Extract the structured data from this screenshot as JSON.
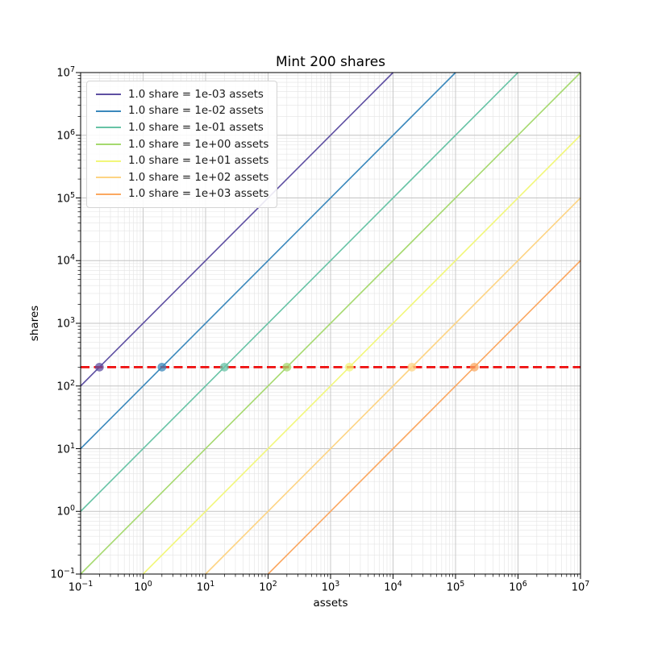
{
  "title": "Mint 200 shares",
  "axes": {
    "xlabel": "assets",
    "ylabel": "shares"
  },
  "chart_data": {
    "type": "line",
    "title": "Mint 200 shares",
    "xlabel": "assets",
    "ylabel": "shares",
    "xscale": "log",
    "yscale": "log",
    "xlim": [
      0.1,
      10000000
    ],
    "ylim": [
      0.1,
      10000000
    ],
    "x_tick_exponents": [
      -1,
      0,
      1,
      2,
      3,
      4,
      5,
      6,
      7
    ],
    "y_tick_exponents": [
      -1,
      0,
      1,
      2,
      3,
      4,
      5,
      6,
      7
    ],
    "grid": {
      "major": true,
      "minor": true,
      "major_color": "#c3c3c3",
      "minor_color": "#e4e4e4"
    },
    "legend": {
      "position": "upper left"
    },
    "series": [
      {
        "name": "1.0 share = 1e-03 assets",
        "assets_per_share": 0.001,
        "color": "#5e4fa2",
        "line_x": [
          0.1,
          10000
        ],
        "line_y": [
          100,
          10000000
        ],
        "mint_point": {
          "assets": 0.2,
          "shares": 200
        }
      },
      {
        "name": "1.0 share = 1e-02 assets",
        "assets_per_share": 0.01,
        "color": "#3a88bc",
        "line_x": [
          0.1,
          100000
        ],
        "line_y": [
          10,
          10000000
        ],
        "mint_point": {
          "assets": 2,
          "shares": 200
        }
      },
      {
        "name": "1.0 share = 1e-01 assets",
        "assets_per_share": 0.1,
        "color": "#67c3a5",
        "line_x": [
          0.1,
          1000000
        ],
        "line_y": [
          1,
          10000000
        ],
        "mint_point": {
          "assets": 20,
          "shares": 200
        }
      },
      {
        "name": "1.0 share = 1e+00 assets",
        "assets_per_share": 1,
        "color": "#a5d96e",
        "line_x": [
          0.1,
          10000000
        ],
        "line_y": [
          0.1,
          10000000
        ],
        "mint_point": {
          "assets": 200,
          "shares": 200
        }
      },
      {
        "name": "1.0 share = 1e+01 assets",
        "assets_per_share": 10,
        "color": "#f2f77a",
        "line_x": [
          1,
          10000000
        ],
        "line_y": [
          0.1,
          1000000
        ],
        "mint_point": {
          "assets": 2000,
          "shares": 200
        }
      },
      {
        "name": "1.0 share = 1e+02 assets",
        "assets_per_share": 100,
        "color": "#fdd483",
        "line_x": [
          10,
          10000000
        ],
        "line_y": [
          0.1,
          100000
        ],
        "mint_point": {
          "assets": 20000,
          "shares": 200
        }
      },
      {
        "name": "1.0 share = 1e+03 assets",
        "assets_per_share": 1000,
        "color": "#fba861",
        "line_x": [
          100,
          10000000
        ],
        "line_y": [
          0.1,
          10000
        ],
        "mint_point": {
          "assets": 200000,
          "shares": 200
        }
      }
    ],
    "reference_line": {
      "orientation": "horizontal",
      "value": 200,
      "style": "dashed",
      "color": "#ee0d0d"
    }
  }
}
